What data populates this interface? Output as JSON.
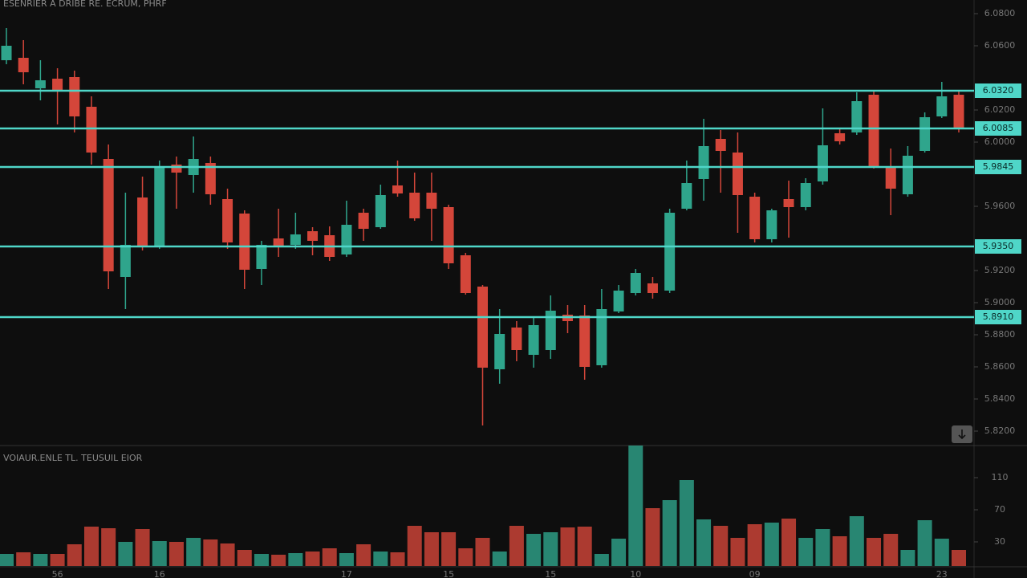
{
  "chart_data": {
    "type": "candlestick",
    "title": "ESENRIER A DRIBE RE. ECRUM, PHRF",
    "categories": [
      null,
      null,
      null,
      "56",
      null,
      null,
      null,
      null,
      null,
      "16",
      null,
      null,
      null,
      null,
      null,
      null,
      null,
      null,
      null,
      null,
      "17",
      null,
      null,
      null,
      null,
      null,
      "15",
      null,
      null,
      null,
      null,
      null,
      "15",
      null,
      null,
      null,
      null,
      "10",
      null,
      null,
      null,
      null,
      null,
      null,
      "09",
      null,
      null,
      null,
      null,
      null,
      null,
      null,
      null,
      null,
      null,
      "23",
      null
    ],
    "open": [
      6.051,
      6.0525,
      6.0335,
      6.0395,
      6.0405,
      6.022,
      5.9895,
      5.916,
      5.9655,
      5.935,
      5.986,
      5.9795,
      5.987,
      5.9645,
      5.9555,
      5.921,
      5.94,
      5.936,
      5.9445,
      5.942,
      5.93,
      5.956,
      5.947,
      5.973,
      5.9685,
      5.9685,
      5.9595,
      5.9295,
      5.91,
      5.8585,
      5.8845,
      5.8675,
      5.8705,
      5.8925,
      5.892,
      5.861,
      5.8945,
      5.906,
      5.912,
      5.9075,
      5.9585,
      5.977,
      6.002,
      5.9935,
      5.966,
      5.9395,
      5.9645,
      5.9595,
      5.9755,
      6.0055,
      6.006,
      6.0295,
      5.9845,
      5.9675,
      5.9945,
      6.016,
      6.0295
    ],
    "close": [
      6.06,
      6.0435,
      6.0385,
      6.0325,
      6.016,
      5.9935,
      5.9195,
      5.936,
      5.9345,
      5.9845,
      5.981,
      5.9895,
      5.9675,
      5.9375,
      5.9205,
      5.936,
      5.935,
      5.9425,
      5.9385,
      5.9285,
      5.9485,
      5.946,
      5.967,
      5.968,
      5.9525,
      5.9585,
      5.9245,
      5.906,
      5.8595,
      5.8805,
      5.8705,
      5.886,
      5.895,
      5.8885,
      5.86,
      5.896,
      5.9075,
      5.9185,
      5.906,
      5.956,
      5.9745,
      5.9975,
      5.9945,
      5.967,
      5.9395,
      5.9575,
      5.9595,
      5.9745,
      5.998,
      6.0005,
      6.0255,
      5.9845,
      5.971,
      5.9915,
      6.0155,
      6.0285,
      6.0085
    ],
    "high": [
      6.071,
      6.0635,
      6.051,
      6.046,
      6.0445,
      6.0285,
      5.9985,
      5.9685,
      5.9785,
      5.9885,
      5.991,
      6.0035,
      5.991,
      5.971,
      5.9575,
      5.9385,
      5.9585,
      5.956,
      5.947,
      5.9475,
      5.9635,
      5.9585,
      5.9735,
      5.9885,
      5.981,
      5.981,
      5.961,
      5.931,
      5.911,
      5.896,
      5.8885,
      5.891,
      5.9045,
      5.8985,
      5.8985,
      5.9085,
      5.911,
      5.921,
      5.916,
      5.9585,
      5.9885,
      6.0145,
      6.0075,
      6.006,
      5.9685,
      5.9585,
      5.976,
      5.9775,
      6.021,
      6.0085,
      6.031,
      6.032,
      5.996,
      5.9975,
      6.0185,
      6.0375,
      6.0325
    ],
    "low": [
      6.0485,
      6.036,
      6.026,
      6.011,
      6.006,
      5.986,
      5.9085,
      5.896,
      5.9325,
      5.9335,
      5.9585,
      5.9685,
      5.961,
      5.9335,
      5.9085,
      5.911,
      5.9285,
      5.9335,
      5.9295,
      5.926,
      5.9285,
      5.9385,
      5.946,
      5.966,
      5.951,
      5.9385,
      5.921,
      5.905,
      5.8235,
      5.8495,
      5.8635,
      5.8595,
      5.865,
      5.881,
      5.852,
      5.8595,
      5.8935,
      5.9045,
      5.9025,
      5.906,
      5.9575,
      5.9635,
      5.9685,
      5.9435,
      5.9375,
      5.9375,
      5.9405,
      5.9575,
      5.9735,
      5.9985,
      6.0045,
      5.9835,
      5.9545,
      5.966,
      5.9935,
      6.015,
      6.006
    ],
    "up_color": "#2fa58c",
    "down_color": "#d4463a",
    "ylim": [
      5.811,
      6.0885
    ],
    "yticks": [
      {
        "value": 6.08,
        "label": "6.0800"
      },
      {
        "value": 6.06,
        "label": "6.0600"
      },
      {
        "value": 6.02,
        "label": "6.0200"
      },
      {
        "value": 6.0,
        "label": "6.0000"
      },
      {
        "value": 5.96,
        "label": "5.9600"
      },
      {
        "value": 5.92,
        "label": "5.9200"
      },
      {
        "value": 5.9,
        "label": "5.9000"
      },
      {
        "value": 5.88,
        "label": "5.8800"
      },
      {
        "value": 5.86,
        "label": "5.8600"
      },
      {
        "value": 5.84,
        "label": "5.8400"
      },
      {
        "value": 5.82,
        "label": "5.8200"
      }
    ],
    "level_color": "#4fd6c8",
    "levels": [
      {
        "value": 6.032,
        "label": "6.0320"
      },
      {
        "value": 6.0085,
        "label": "6.0085"
      },
      {
        "value": 5.9845,
        "label": "5.9845"
      },
      {
        "value": 5.935,
        "label": "5.9350"
      },
      {
        "value": 5.891,
        "label": "5.8910"
      }
    ],
    "volume": {
      "title": "VOIAUR.ENLE TL. TEUSUIL EIOR",
      "values": [
        15,
        17,
        15,
        15,
        27,
        49,
        47,
        30,
        46,
        31,
        30,
        35,
        33,
        28,
        20,
        15,
        14,
        16,
        18,
        22,
        16,
        27,
        18,
        17,
        50,
        42,
        42,
        22,
        35,
        18,
        50,
        40,
        42,
        48,
        49,
        15,
        34,
        150,
        72,
        82,
        107,
        58,
        50,
        35,
        52,
        54,
        59,
        35,
        46,
        37,
        62,
        35,
        40,
        20,
        57,
        34,
        20
      ],
      "ylim": [
        0,
        150
      ],
      "yticks": [
        30,
        70,
        110
      ]
    }
  }
}
